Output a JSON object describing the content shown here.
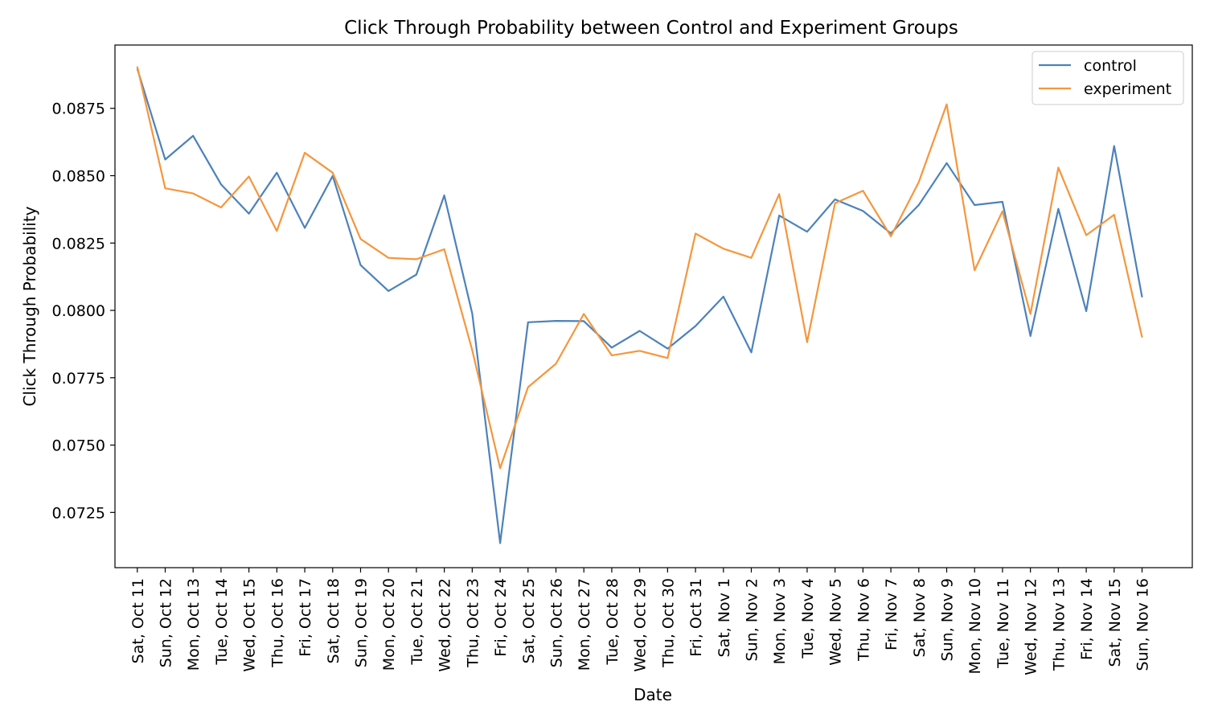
{
  "chart_data": {
    "type": "line",
    "title": "Click Through Probability between Control and Experiment Groups",
    "xlabel": "Date",
    "ylabel": "Click Through Probability",
    "x": [
      "Sat, Oct 11",
      "Sun, Oct 12",
      "Mon, Oct 13",
      "Tue, Oct 14",
      "Wed, Oct 15",
      "Thu, Oct 16",
      "Fri, Oct 17",
      "Sat, Oct 18",
      "Sun, Oct 19",
      "Mon, Oct 20",
      "Tue, Oct 21",
      "Wed, Oct 22",
      "Thu, Oct 23",
      "Fri, Oct 24",
      "Sat, Oct 25",
      "Sun, Oct 26",
      "Mon, Oct 27",
      "Tue, Oct 28",
      "Wed, Oct 29",
      "Thu, Oct 30",
      "Fri, Oct 31",
      "Sat, Nov 1",
      "Sun, Nov 2",
      "Mon, Nov 3",
      "Tue, Nov 4",
      "Wed, Nov 5",
      "Thu, Nov 6",
      "Fri, Nov 7",
      "Sat, Nov 8",
      "Sun, Nov 9",
      "Mon, Nov 10",
      "Tue, Nov 11",
      "Wed, Nov 12",
      "Thu, Nov 13",
      "Fri, Nov 14",
      "Sat, Nov 15",
      "Sun, Nov 16"
    ],
    "series": [
      {
        "name": "control",
        "color": "#4c82ba",
        "values": [
          0.08897,
          0.0856,
          0.08648,
          0.08468,
          0.08359,
          0.08511,
          0.08306,
          0.08499,
          0.08168,
          0.08072,
          0.08133,
          0.08427,
          0.07988,
          0.07136,
          0.07956,
          0.07961,
          0.0796,
          0.07862,
          0.07924,
          0.07858,
          0.07942,
          0.08051,
          0.07844,
          0.08352,
          0.08292,
          0.08412,
          0.08369,
          0.08286,
          0.08391,
          0.08547,
          0.08391,
          0.08403,
          0.07905,
          0.08377,
          0.07997,
          0.0861,
          0.0805
        ]
      },
      {
        "name": "experiment",
        "color": "#f5963c",
        "values": [
          0.08904,
          0.08453,
          0.08434,
          0.08382,
          0.08497,
          0.08295,
          0.08585,
          0.08511,
          0.08265,
          0.08195,
          0.0819,
          0.08227,
          0.07852,
          0.07414,
          0.07715,
          0.07802,
          0.07987,
          0.07833,
          0.0785,
          0.07823,
          0.08285,
          0.08229,
          0.08195,
          0.08432,
          0.07882,
          0.08398,
          0.08444,
          0.08275,
          0.08476,
          0.08765,
          0.08149,
          0.08368,
          0.07987,
          0.0853,
          0.08279,
          0.08355,
          0.07901
        ]
      }
    ],
    "yticks": [
      "0.0725",
      "0.0750",
      "0.0775",
      "0.0800",
      "0.0825",
      "0.0850",
      "0.0875"
    ],
    "ylim": [
      0.07045,
      0.08985
    ],
    "xlim": [
      -0.8,
      37.8
    ],
    "grid": false,
    "legend_position": "top-right"
  }
}
